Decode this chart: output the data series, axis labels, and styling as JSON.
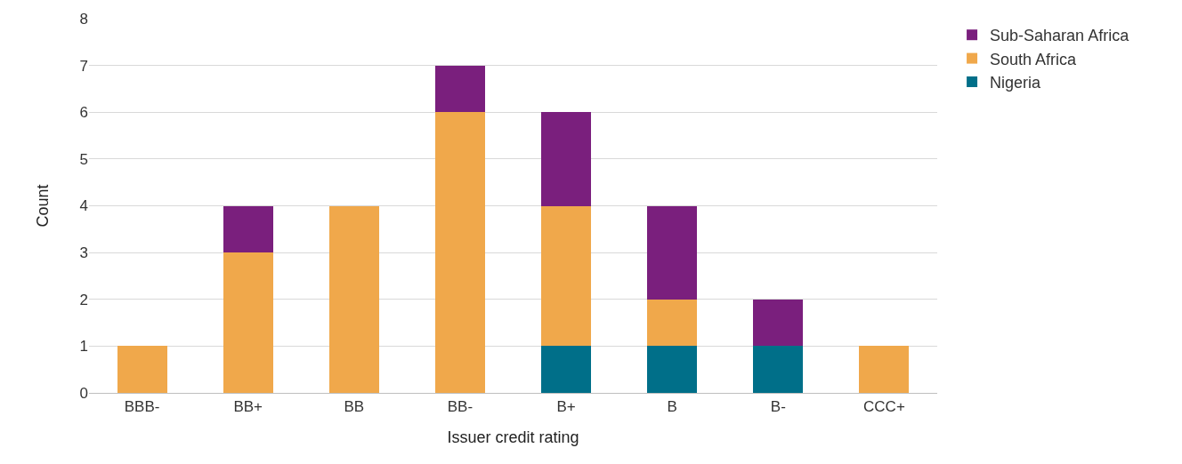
{
  "chart_data": {
    "type": "bar",
    "stacked": true,
    "xlabel": "Issuer credit rating",
    "ylabel": "Count",
    "categories": [
      "BBB-",
      "BB+",
      "BB",
      "BB-",
      "B+",
      "B",
      "B-",
      "CCC+"
    ],
    "series": [
      {
        "name": "Nigeria",
        "color": "#006f89",
        "values": [
          0,
          0,
          0,
          0,
          1,
          1,
          1,
          0
        ]
      },
      {
        "name": "South Africa",
        "color": "#f0a84b",
        "values": [
          1,
          3,
          4,
          6,
          3,
          1,
          0,
          1
        ]
      },
      {
        "name": "Sub-Saharan Africa",
        "color": "#7a1f7d",
        "values": [
          0,
          1,
          0,
          1,
          2,
          2,
          1,
          0
        ]
      }
    ],
    "ylim": [
      0,
      8
    ],
    "yticks": [
      0,
      1,
      2,
      3,
      4,
      5,
      6,
      7,
      8
    ],
    "grid": "y",
    "legend": "right"
  }
}
